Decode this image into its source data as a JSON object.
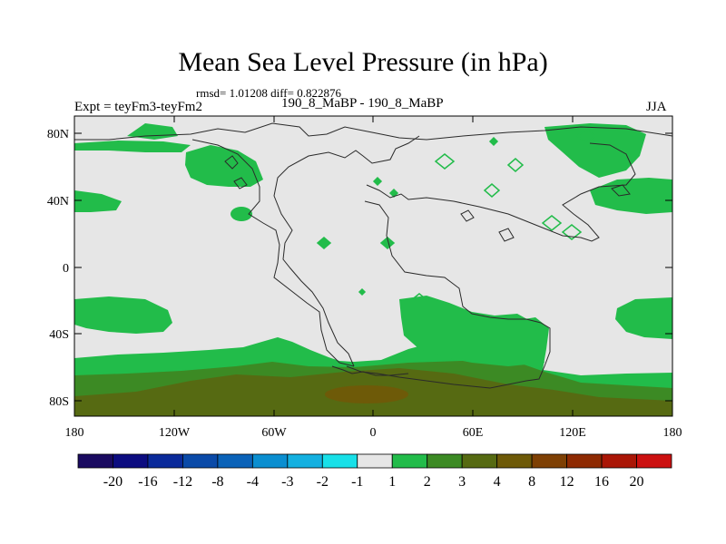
{
  "title": "Mean Sea Level Pressure (in hPa)",
  "stats": "rmsd= 1.01208 diff= 0.822876",
  "left_label": "Expt = teyFm3-teyFm2",
  "center_label": "190_8_MaBP - 190_8_MaBP",
  "right_label": "JJA",
  "lat_ticks": [
    "80N",
    "40N",
    "0",
    "40S",
    "80S"
  ],
  "lon_ticks": [
    "180",
    "120W",
    "60W",
    "0",
    "60E",
    "120E",
    "180"
  ],
  "colorbar": {
    "labels": [
      "-20",
      "-16",
      "-12",
      "-8",
      "-4",
      "-3",
      "-2",
      "-1",
      "1",
      "2",
      "3",
      "4",
      "8",
      "12",
      "16",
      "20"
    ],
    "colors": [
      "#1a0a60",
      "#0c0c80",
      "#0a2a9a",
      "#0a4aa8",
      "#0a62b8",
      "#0a8ed0",
      "#14b0e0",
      "#18e0e8",
      "#e6e6e6",
      "#22bc4a",
      "#3c8a24",
      "#566a12",
      "#6e5a08",
      "#7e4004",
      "#8e2a02",
      "#aa1606",
      "#cc1010"
    ]
  },
  "colors": {
    "background": "#e6e6e6",
    "green": "#22bc4a",
    "dark_green": "#3c8a24",
    "olive": "#566a12",
    "brown": "#6e5a08"
  }
}
